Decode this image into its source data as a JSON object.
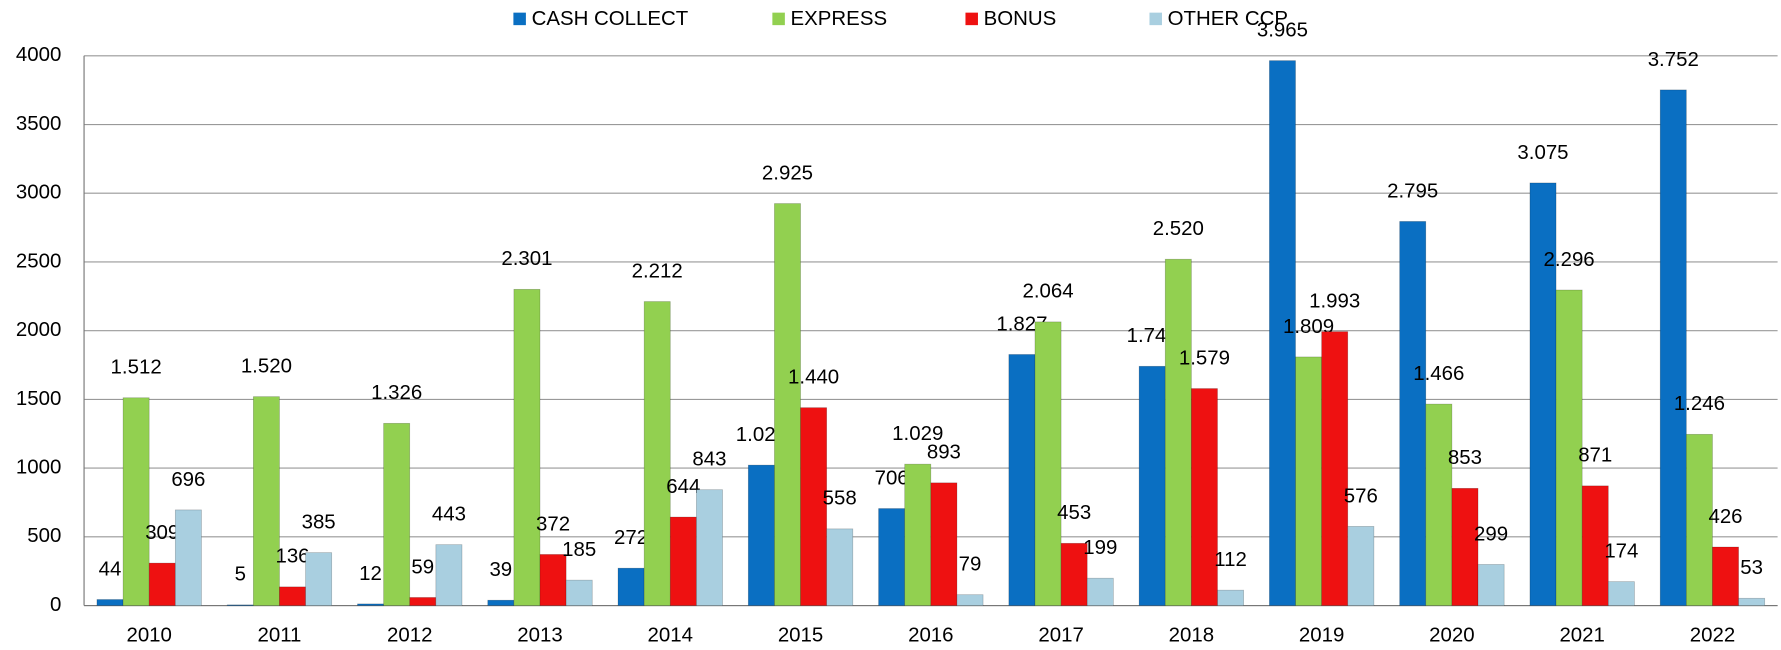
{
  "chart_data": {
    "type": "bar",
    "categories": [
      "2010",
      "2011",
      "2012",
      "2013",
      "2014",
      "2015",
      "2016",
      "2017",
      "2018",
      "2019",
      "2020",
      "2021",
      "2022"
    ],
    "series": [
      {
        "name": "CASH COLLECT",
        "color": "#0a6fc2",
        "values": [
          44,
          5,
          12,
          39,
          272,
          1022,
          706,
          1827,
          1741,
          3965,
          2795,
          3075,
          3752
        ],
        "value_labels": [
          "44",
          "5",
          "12",
          "39",
          "272",
          "1.022",
          "706",
          "1.827",
          "1.741",
          "3.965",
          "2.795",
          "3.075",
          "3.752"
        ]
      },
      {
        "name": "EXPRESS",
        "color": "#92d050",
        "values": [
          1512,
          1520,
          1326,
          2301,
          2212,
          2925,
          1029,
          2064,
          2520,
          1809,
          1466,
          2296,
          1246
        ],
        "value_labels": [
          "1.512",
          "1.520",
          "1.326",
          "2.301",
          "2.212",
          "2.925",
          "1.029",
          "2.064",
          "2.520",
          "1.809",
          "1.466",
          "2.296",
          "1.246"
        ]
      },
      {
        "name": "BONUS",
        "color": "#ee1111",
        "values": [
          309,
          136,
          59,
          372,
          644,
          1440,
          893,
          453,
          1579,
          1993,
          853,
          871,
          426
        ],
        "value_labels": [
          "309",
          "136",
          "59",
          "372",
          "644",
          "1.440",
          "893",
          "453",
          "1.579",
          "1.993",
          "853",
          "871",
          "426"
        ]
      },
      {
        "name": "OTHER CCP",
        "color": "#a9cfe0",
        "values": [
          696,
          385,
          443,
          185,
          843,
          558,
          79,
          199,
          112,
          576,
          299,
          174,
          53
        ],
        "value_labels": [
          "696",
          "385",
          "443",
          "185",
          "843",
          "558",
          "79",
          "199",
          "112",
          "576",
          "299",
          "174",
          "53"
        ]
      }
    ],
    "ylim": [
      0,
      4000
    ],
    "yticks": [
      0,
      500,
      1000,
      1500,
      2000,
      2500,
      3000,
      3500,
      4000
    ],
    "grid": true,
    "legend": "top"
  }
}
